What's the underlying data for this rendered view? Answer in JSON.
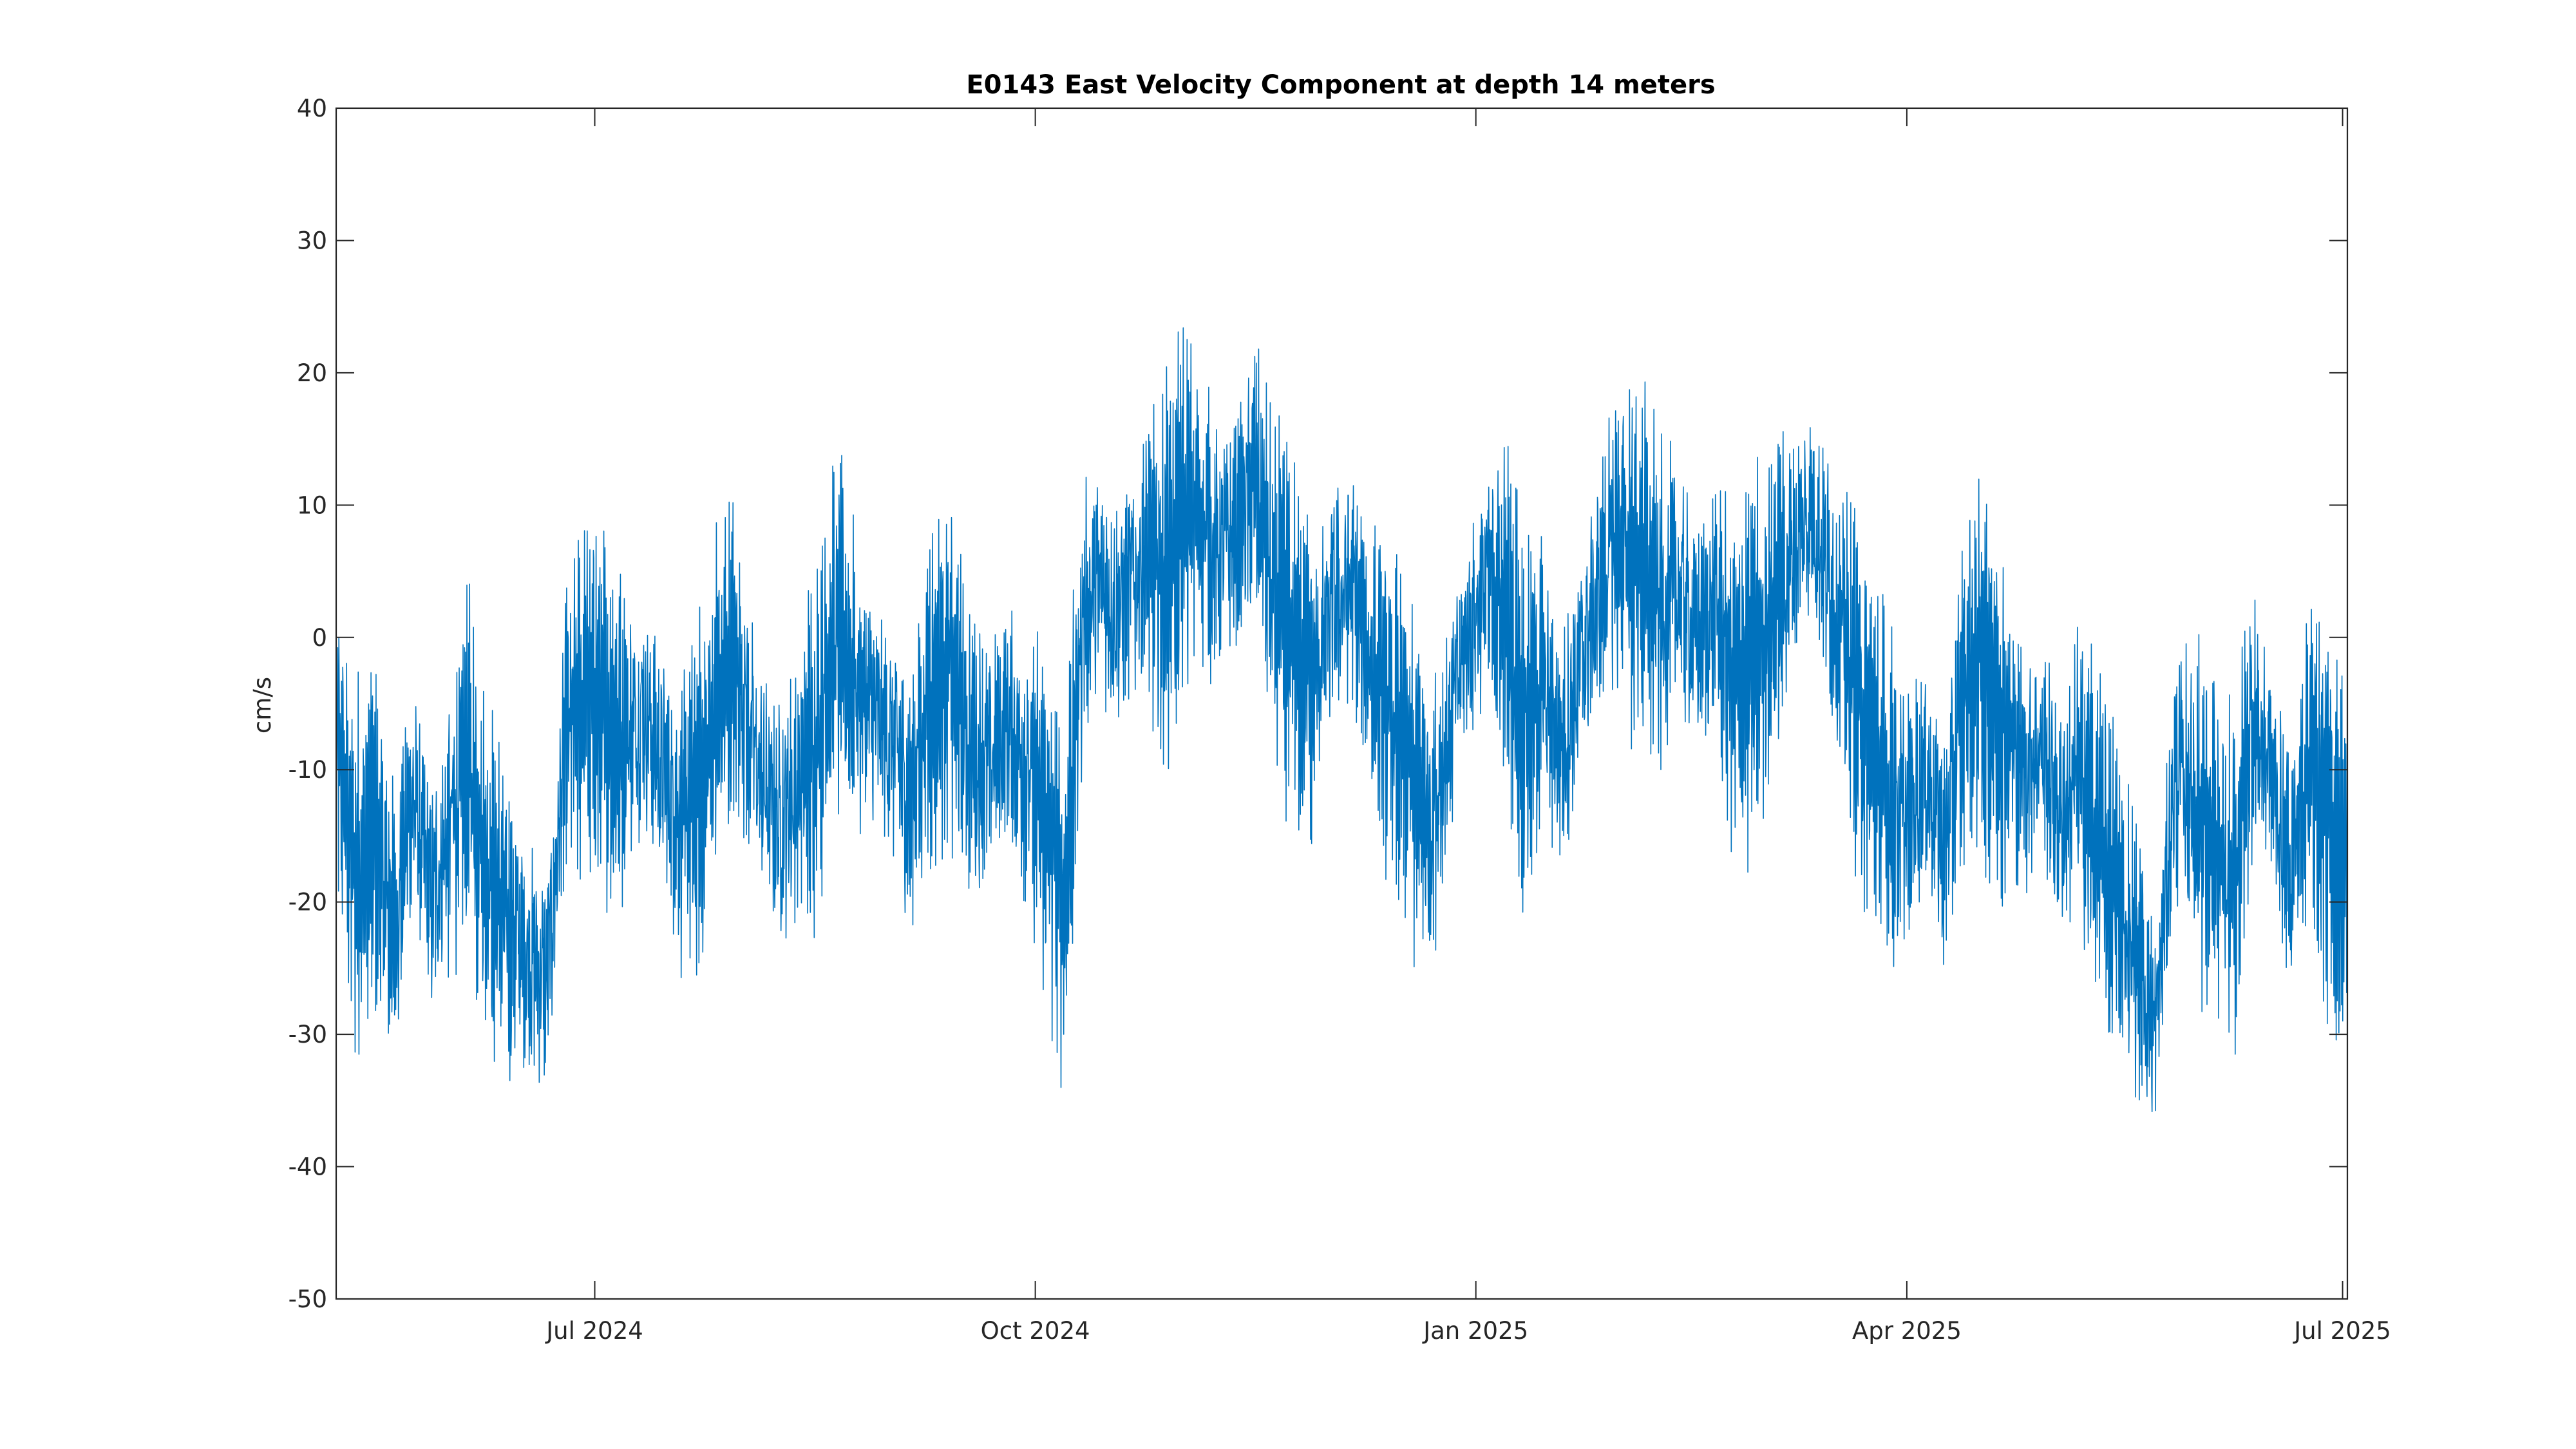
{
  "chart_data": {
    "type": "line",
    "title": "E0143 East Velocity Component at depth 14 meters",
    "xlabel": "",
    "ylabel": "cm/s",
    "ylim": [
      -50,
      40
    ],
    "xlim": [
      "2024-05-08",
      "2025-07-02"
    ],
    "yticks": [
      40,
      30,
      20,
      10,
      0,
      -10,
      -20,
      -30,
      -40,
      -50
    ],
    "ytick_labels": [
      "40",
      "30",
      "20",
      "10",
      "0",
      "-10",
      "-20",
      "-30",
      "-40",
      "-50"
    ],
    "xticks": [
      {
        "date": "2024-07-01",
        "label": "Jul 2024"
      },
      {
        "date": "2024-10-01",
        "label": "Oct 2024"
      },
      {
        "date": "2025-01-01",
        "label": "Jan 2025"
      },
      {
        "date": "2025-04-01",
        "label": "Apr 2025"
      },
      {
        "date": "2025-07-01",
        "label": "Jul 2025"
      }
    ],
    "grid": false,
    "line_color": "#0072BD",
    "series": [
      {
        "values": [
          [
            "2024-05-08",
            -8
          ],
          [
            "2024-05-12",
            -18
          ],
          [
            "2024-05-16",
            -15
          ],
          [
            "2024-05-20",
            -22
          ],
          [
            "2024-05-24",
            -12
          ],
          [
            "2024-05-28",
            -20
          ],
          [
            "2024-06-01",
            -14
          ],
          [
            "2024-06-05",
            -10
          ],
          [
            "2024-06-09",
            -18
          ],
          [
            "2024-06-13",
            -22
          ],
          [
            "2024-06-17",
            -24
          ],
          [
            "2024-06-21",
            -26
          ],
          [
            "2024-06-25",
            -8
          ],
          [
            "2024-06-29",
            -4
          ],
          [
            "2024-07-03",
            -6
          ],
          [
            "2024-07-07",
            -8
          ],
          [
            "2024-07-11",
            -5
          ],
          [
            "2024-07-15",
            -10
          ],
          [
            "2024-07-19",
            -14
          ],
          [
            "2024-07-23",
            -12
          ],
          [
            "2024-07-27",
            -4
          ],
          [
            "2024-07-31",
            -2
          ],
          [
            "2024-08-04",
            -10
          ],
          [
            "2024-08-08",
            -14
          ],
          [
            "2024-08-12",
            -12
          ],
          [
            "2024-08-16",
            -8
          ],
          [
            "2024-08-20",
            0
          ],
          [
            "2024-08-24",
            -3
          ],
          [
            "2024-08-28",
            -6
          ],
          [
            "2024-09-01",
            -8
          ],
          [
            "2024-09-05",
            -12
          ],
          [
            "2024-09-09",
            -4
          ],
          [
            "2024-09-13",
            -2
          ],
          [
            "2024-09-17",
            -8
          ],
          [
            "2024-09-21",
            -10
          ],
          [
            "2024-09-25",
            -6
          ],
          [
            "2024-09-29",
            -10
          ],
          [
            "2024-10-03",
            -14
          ],
          [
            "2024-10-07",
            -20
          ],
          [
            "2024-10-11",
            2
          ],
          [
            "2024-10-15",
            4
          ],
          [
            "2024-10-19",
            2
          ],
          [
            "2024-10-23",
            6
          ],
          [
            "2024-10-27",
            4
          ],
          [
            "2024-10-31",
            8
          ],
          [
            "2024-11-04",
            10
          ],
          [
            "2024-11-08",
            6
          ],
          [
            "2024-11-12",
            8
          ],
          [
            "2024-11-16",
            12
          ],
          [
            "2024-11-20",
            2
          ],
          [
            "2024-11-24",
            0
          ],
          [
            "2024-11-28",
            -4
          ],
          [
            "2024-12-02",
            2
          ],
          [
            "2024-12-06",
            4
          ],
          [
            "2024-12-10",
            -2
          ],
          [
            "2024-12-14",
            -6
          ],
          [
            "2024-12-18",
            -10
          ],
          [
            "2024-12-22",
            -14
          ],
          [
            "2024-12-26",
            -8
          ],
          [
            "2024-12-30",
            0
          ],
          [
            "2025-01-03",
            4
          ],
          [
            "2025-01-07",
            2
          ],
          [
            "2025-01-11",
            -6
          ],
          [
            "2025-01-15",
            -4
          ],
          [
            "2025-01-19",
            -8
          ],
          [
            "2025-01-23",
            -2
          ],
          [
            "2025-01-27",
            4
          ],
          [
            "2025-01-31",
            8
          ],
          [
            "2025-02-04",
            6
          ],
          [
            "2025-02-08",
            2
          ],
          [
            "2025-02-12",
            4
          ],
          [
            "2025-02-16",
            0
          ],
          [
            "2025-02-20",
            2
          ],
          [
            "2025-02-24",
            -4
          ],
          [
            "2025-02-28",
            -2
          ],
          [
            "2025-03-04",
            2
          ],
          [
            "2025-03-08",
            6
          ],
          [
            "2025-03-12",
            10
          ],
          [
            "2025-03-16",
            4
          ],
          [
            "2025-03-20",
            -2
          ],
          [
            "2025-03-24",
            -8
          ],
          [
            "2025-03-28",
            -12
          ],
          [
            "2025-04-01",
            -14
          ],
          [
            "2025-04-05",
            -10
          ],
          [
            "2025-04-09",
            -16
          ],
          [
            "2025-04-13",
            -4
          ],
          [
            "2025-04-17",
            -2
          ],
          [
            "2025-04-21",
            -6
          ],
          [
            "2025-04-25",
            -10
          ],
          [
            "2025-04-29",
            -8
          ],
          [
            "2025-05-03",
            -14
          ],
          [
            "2025-05-07",
            -10
          ],
          [
            "2025-05-11",
            -16
          ],
          [
            "2025-05-15",
            -20
          ],
          [
            "2025-05-19",
            -24
          ],
          [
            "2025-05-23",
            -30
          ],
          [
            "2025-05-27",
            -10
          ],
          [
            "2025-05-31",
            -12
          ],
          [
            "2025-06-04",
            -16
          ],
          [
            "2025-06-08",
            -20
          ],
          [
            "2025-06-12",
            -6
          ],
          [
            "2025-06-16",
            -10
          ],
          [
            "2025-06-20",
            -18
          ],
          [
            "2025-06-24",
            -8
          ],
          [
            "2025-06-28",
            -14
          ],
          [
            "2025-07-02",
            -18
          ]
        ]
      }
    ]
  }
}
